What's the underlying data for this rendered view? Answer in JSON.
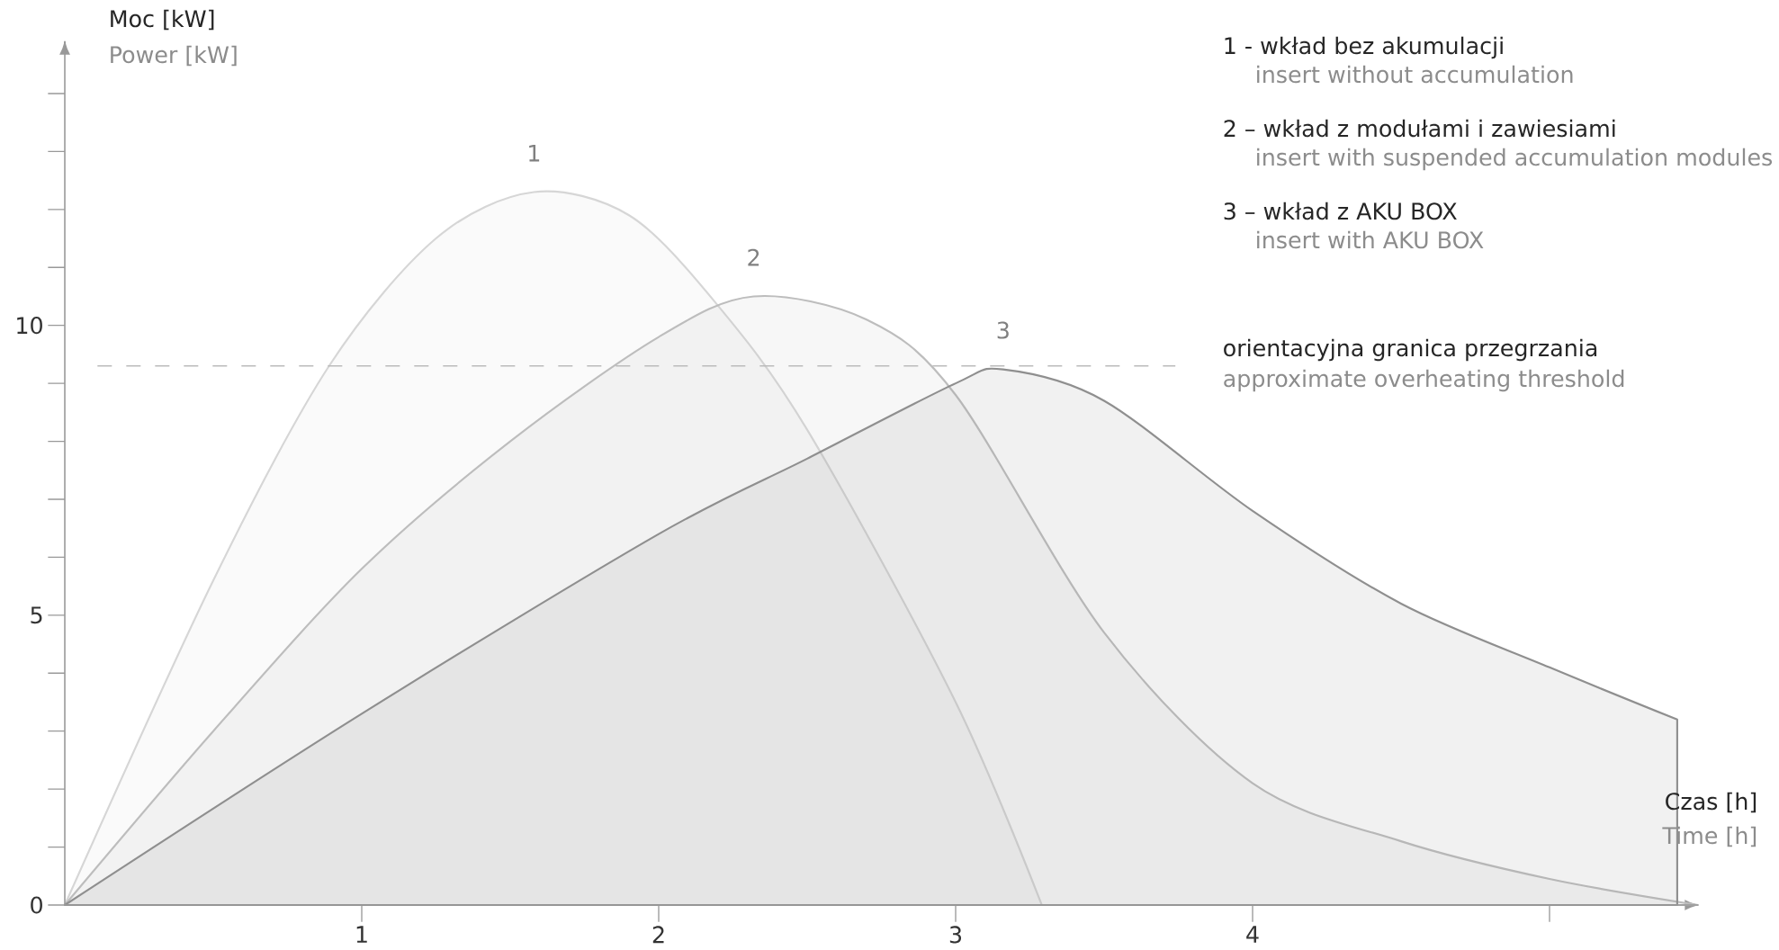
{
  "chart_data": {
    "type": "area",
    "xlabel": "Czas [h]",
    "ylabel": "Moc [kW]",
    "xlim": [
      0,
      5.5
    ],
    "ylim": [
      0,
      14.9
    ],
    "xticks": [
      1,
      2,
      3,
      4
    ],
    "yticks": [
      0,
      5,
      10
    ],
    "grid": false,
    "series": [
      {
        "name": "1",
        "color": "#d6d6d6",
        "x": [
          0,
          0.5,
          0.89,
          1.25,
          1.58,
          1.9,
          2.19,
          2.5,
          3.0,
          3.29
        ],
        "values": [
          0,
          5.6,
          9.3,
          11.5,
          12.3,
          11.9,
          10.4,
          8.2,
          3.5,
          0
        ]
      },
      {
        "name": "2",
        "color": "#bdbdbd",
        "x": [
          0,
          0.5,
          1.0,
          1.5,
          2.0,
          2.32,
          2.7,
          3.0,
          3.5,
          4.0,
          4.5,
          5.0,
          5.5
        ],
        "values": [
          0,
          3.0,
          5.8,
          8.0,
          9.8,
          10.5,
          10.1,
          8.8,
          4.7,
          2.1,
          1.1,
          0.45,
          0
        ]
      },
      {
        "name": "3",
        "color": "#8f8f8f",
        "x": [
          0,
          1.0,
          2.0,
          2.5,
          3.0,
          3.16,
          3.5,
          4.0,
          4.5,
          5.0,
          5.43
        ],
        "values": [
          0,
          3.3,
          6.4,
          7.7,
          9.0,
          9.24,
          8.7,
          6.8,
          5.2,
          4.1,
          3.2
        ]
      }
    ],
    "ref_lines": [
      {
        "axis": "y",
        "value": 9.3,
        "label": "orientacyjna granica przegrzania",
        "color": "#bbbbbb",
        "line_style": "dashed"
      }
    ],
    "annotations": [
      "Power [kW]",
      "Time [h]",
      "1 - wkład bez akumulacji",
      "insert without accumulation",
      "2 – wkład z modułami i zawiesiami",
      "insert with suspended accumulation modules",
      "3 – wkład z AKU BOX",
      "insert with AKU BOX",
      "approximate overheating threshold"
    ]
  }
}
